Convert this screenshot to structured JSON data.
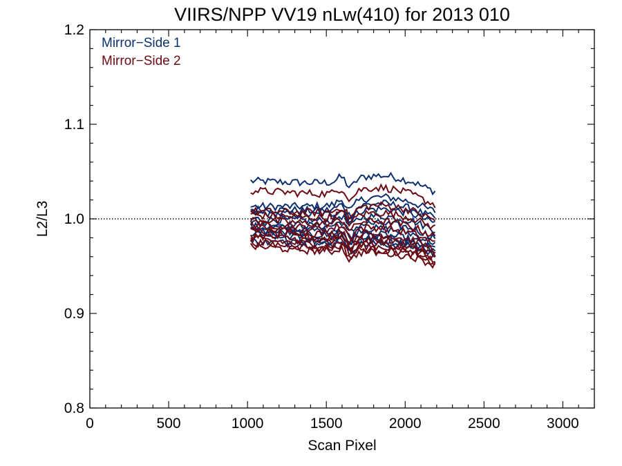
{
  "chart_data": {
    "type": "line",
    "title": "VIIRS/NPP VV19 nLw(410) for 2013 010",
    "xlabel": "Scan Pixel",
    "ylabel": "L2/L3",
    "xlim": [
      0,
      3200
    ],
    "ylim": [
      0.8,
      1.2
    ],
    "xticks": [
      0,
      500,
      1000,
      1500,
      2000,
      2500,
      3000
    ],
    "yticks": [
      0.8,
      0.9,
      1.0,
      1.1,
      1.2
    ],
    "xtick_labels": [
      "0",
      "500",
      "1000",
      "1500",
      "2000",
      "2500",
      "3000"
    ],
    "ytick_labels": [
      "0.8",
      "0.9",
      "1.0",
      "1.1",
      "1.2"
    ],
    "reference_line": 1.0,
    "legend_position": "top-left",
    "legend": [
      {
        "label": "Mirror−Side 1",
        "color": "#0b2f6e"
      },
      {
        "label": "Mirror−Side 2",
        "color": "#6b0a14"
      }
    ],
    "x_range": [
      1020,
      2190
    ],
    "series": [
      {
        "side": 1,
        "color": "#0b2f6e",
        "base": 1.04,
        "tilt": -0.006,
        "bump": 0.01
      },
      {
        "side": 1,
        "color": "#0b2f6e",
        "base": 1.013,
        "tilt": 0.0,
        "bump": 0.01
      },
      {
        "side": 1,
        "color": "#0b2f6e",
        "base": 1.01,
        "tilt": -0.004,
        "bump": 0.009
      },
      {
        "side": 1,
        "color": "#0b2f6e",
        "base": 1.006,
        "tilt": -0.005,
        "bump": 0.008
      },
      {
        "side": 1,
        "color": "#0b2f6e",
        "base": 1.0,
        "tilt": -0.006,
        "bump": 0.007
      },
      {
        "side": 1,
        "color": "#0b2f6e",
        "base": 0.996,
        "tilt": -0.01,
        "bump": 0.006
      },
      {
        "side": 1,
        "color": "#0b2f6e",
        "base": 0.992,
        "tilt": -0.012,
        "bump": 0.006
      },
      {
        "side": 1,
        "color": "#0b2f6e",
        "base": 0.988,
        "tilt": -0.014,
        "bump": 0.005
      },
      {
        "side": 1,
        "color": "#0b2f6e",
        "base": 0.984,
        "tilt": -0.012,
        "bump": 0.004
      },
      {
        "side": 1,
        "color": "#0b2f6e",
        "base": 0.98,
        "tilt": -0.01,
        "bump": 0.004
      },
      {
        "side": 1,
        "color": "#0b2f6e",
        "base": 0.976,
        "tilt": -0.008,
        "bump": 0.003
      },
      {
        "side": 2,
        "color": "#6b0a14",
        "base": 1.03,
        "tilt": -0.01,
        "bump": 0.01
      },
      {
        "side": 2,
        "color": "#6b0a14",
        "base": 1.008,
        "tilt": -0.004,
        "bump": 0.009
      },
      {
        "side": 2,
        "color": "#6b0a14",
        "base": 1.004,
        "tilt": -0.008,
        "bump": 0.008
      },
      {
        "side": 2,
        "color": "#6b0a14",
        "base": 0.999,
        "tilt": -0.012,
        "bump": 0.007
      },
      {
        "side": 2,
        "color": "#6b0a14",
        "base": 0.995,
        "tilt": -0.015,
        "bump": 0.006
      },
      {
        "side": 2,
        "color": "#6b0a14",
        "base": 0.991,
        "tilt": -0.018,
        "bump": 0.005
      },
      {
        "side": 2,
        "color": "#6b0a14",
        "base": 0.987,
        "tilt": -0.02,
        "bump": 0.005
      },
      {
        "side": 2,
        "color": "#6b0a14",
        "base": 0.983,
        "tilt": -0.019,
        "bump": 0.004
      },
      {
        "side": 2,
        "color": "#6b0a14",
        "base": 0.979,
        "tilt": -0.018,
        "bump": 0.004
      },
      {
        "side": 2,
        "color": "#6b0a14",
        "base": 0.975,
        "tilt": -0.016,
        "bump": 0.003
      },
      {
        "side": 2,
        "color": "#6b0a14",
        "base": 0.971,
        "tilt": -0.014,
        "bump": 0.003
      }
    ]
  }
}
